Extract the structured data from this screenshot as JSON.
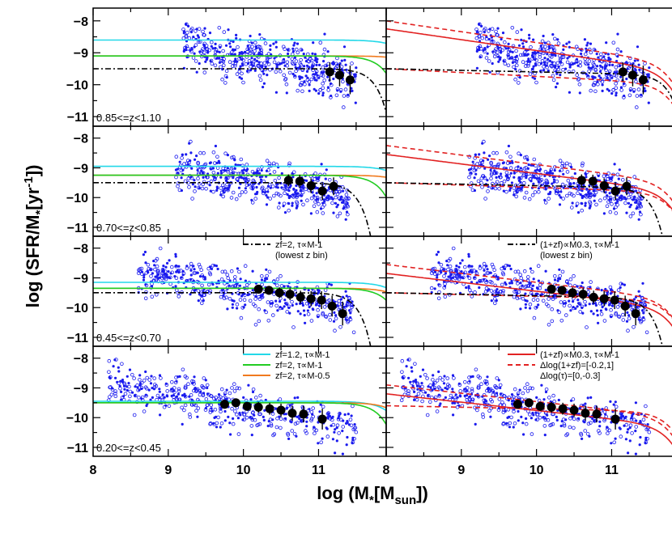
{
  "figure": {
    "xlabel": "log (M*[Msun])",
    "ylabel": "log (SFR/M*[yr-1])"
  },
  "chart_data": {
    "type": "scatter",
    "xlabel": "log (M*[Msun])",
    "ylabel": "log (SFR/M*[yr-1])",
    "xlim": [
      8,
      11.9
    ],
    "ylim": [
      -11.3,
      -7.6
    ],
    "xticks": [
      8,
      9,
      10,
      11
    ],
    "yticks": [
      -8,
      -9,
      -10,
      -11
    ],
    "rows": [
      {
        "z_label": "0.85<=z<1.10",
        "median_x": [
          11.15,
          11.28,
          11.42
        ],
        "median_y": [
          -9.6,
          -9.7,
          -9.85
        ],
        "median_err": [
          0.3,
          0.35,
          0.45
        ],
        "left_legend": [],
        "right_legend": []
      },
      {
        "z_label": "0.70<=z<0.85",
        "median_x": [
          10.6,
          10.75,
          10.9,
          11.05,
          11.2
        ],
        "median_y": [
          -9.42,
          -9.45,
          -9.6,
          -9.78,
          -9.62
        ],
        "median_err": [
          0.2,
          0.22,
          0.25,
          0.3,
          0.3
        ],
        "left_legend": [],
        "right_legend": []
      },
      {
        "z_label": "0.45<=z<0.70",
        "median_x": [
          10.2,
          10.34,
          10.48,
          10.62,
          10.76,
          10.9,
          11.04,
          11.18,
          11.32
        ],
        "median_y": [
          -9.38,
          -9.42,
          -9.5,
          -9.55,
          -9.65,
          -9.7,
          -9.75,
          -9.95,
          -10.2
        ],
        "median_err": [
          0.15,
          0.15,
          0.18,
          0.2,
          0.22,
          0.25,
          0.3,
          0.35,
          0.4
        ],
        "left_legend": [
          {
            "text": "zf=2, τ∝M-1",
            "line": "dashdot",
            "color": "#000000"
          },
          {
            "text": "(lowest z bin)",
            "line": "none",
            "color": "#000000"
          }
        ],
        "right_legend": [
          {
            "text": "(1+zf)∝M0.3, τ∝M-1",
            "line": "dashdot",
            "color": "#000000"
          },
          {
            "text": "(lowest z bin)",
            "line": "none",
            "color": "#000000"
          }
        ]
      },
      {
        "z_label": "0.20<=z<0.45",
        "median_x": [
          9.75,
          9.9,
          10.05,
          10.2,
          10.35,
          10.5,
          10.65,
          10.8,
          11.05
        ],
        "median_y": [
          -9.55,
          -9.5,
          -9.62,
          -9.65,
          -9.7,
          -9.75,
          -9.85,
          -9.88,
          -10.05
        ],
        "median_err": [
          0.15,
          0.15,
          0.15,
          0.18,
          0.2,
          0.22,
          0.25,
          0.28,
          0.35
        ],
        "left_legend": [
          {
            "text": "zf=1.2, τ∝M-1",
            "line": "solid",
            "color": "#22d8e8"
          },
          {
            "text": "zf=2, τ∝M-1",
            "line": "solid",
            "color": "#22cc22"
          },
          {
            "text": "zf=2, τ∝M-0.5",
            "line": "solid",
            "color": "#f07a1e"
          }
        ],
        "right_legend": [
          {
            "text": "(1+zf)∝M0.3, τ∝M-1",
            "line": "solid",
            "color": "#e22222"
          },
          {
            "text": "Δlog(1+zf)=[-0.2,1]",
            "line": "dashed",
            "color": "#e22222"
          },
          {
            "text": "Δlog(τ)=[0,-0.3]",
            "line": "none",
            "color": "#e22222"
          }
        ]
      }
    ]
  },
  "colors": {
    "points": "#1a1aee",
    "cyan": "#22d8e8",
    "green": "#22cc22",
    "orange": "#f07a1e",
    "red": "#e22222"
  }
}
